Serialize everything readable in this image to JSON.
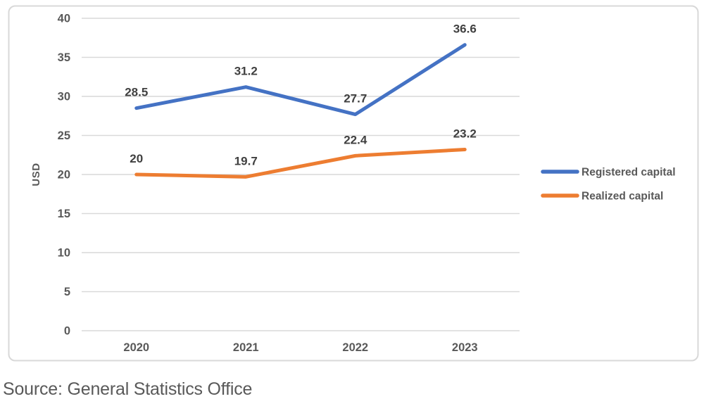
{
  "chart_data": {
    "type": "line",
    "title": "",
    "xlabel": "",
    "ylabel": "USD",
    "categories": [
      "2020",
      "2021",
      "2022",
      "2023"
    ],
    "series": [
      {
        "name": "Registered capital",
        "color": "#4472C4",
        "values": [
          28.5,
          31.2,
          27.7,
          36.6
        ],
        "labels": [
          "28.5",
          "31.2",
          "27.7",
          "36.6"
        ]
      },
      {
        "name": "Realized capital",
        "color": "#ED7D31",
        "values": [
          20,
          19.7,
          22.4,
          23.2
        ],
        "labels": [
          "20",
          "19.7",
          "22.4",
          "23.2"
        ]
      }
    ],
    "y_axis": {
      "min": 0,
      "max": 40,
      "step": 5,
      "ticks": [
        0,
        5,
        10,
        15,
        20,
        25,
        30,
        35,
        40
      ]
    },
    "grid": true,
    "legend_position": "right"
  },
  "source_text": "Source: General Statistics Office",
  "colors": {
    "background": "#FFFFFF",
    "plot_border": "#D8D8D8",
    "gridline": "#D9D9D9",
    "axis_text": "#595959",
    "data_label_text": "#404040",
    "legend_text": "#595959"
  }
}
